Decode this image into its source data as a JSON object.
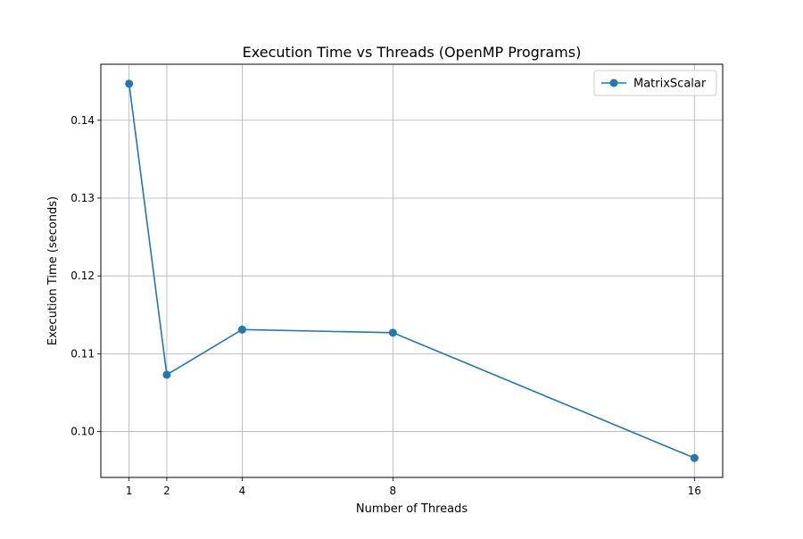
{
  "chart_data": {
    "type": "line",
    "title": "Execution Time vs Threads (OpenMP Programs)",
    "xlabel": "Number of Threads",
    "ylabel": "Execution Time (seconds)",
    "xlim": [
      0.25,
      16.75
    ],
    "ylim": [
      0.0941,
      0.1472
    ],
    "xticks": [
      1,
      2,
      4,
      8,
      16
    ],
    "xtick_labels": [
      "1",
      "2",
      "4",
      "8",
      "16"
    ],
    "yticks": [
      0.1,
      0.11,
      0.12,
      0.13,
      0.14
    ],
    "ytick_labels": [
      "0.10",
      "0.11",
      "0.12",
      "0.13",
      "0.14"
    ],
    "grid": true,
    "legend_position": "upper right",
    "series": [
      {
        "name": "MatrixScalar",
        "color": "#1f77b4",
        "marker": "circle",
        "x": [
          1,
          2,
          4,
          8,
          16
        ],
        "values": [
          0.1447,
          0.1073,
          0.1131,
          0.1127,
          0.0966
        ]
      }
    ]
  }
}
